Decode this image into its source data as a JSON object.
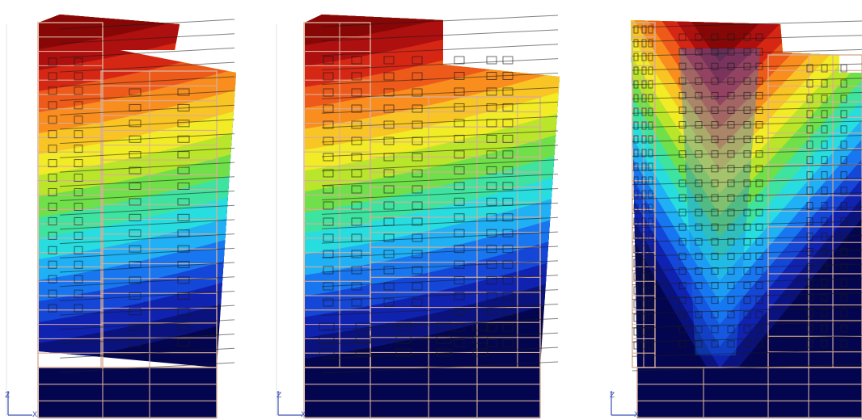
{
  "panels": [
    {
      "id": "left",
      "axis_z": "Z",
      "axis_x": "X"
    },
    {
      "id": "middle",
      "axis_z": "Z",
      "axis_x": "X"
    },
    {
      "id": "right",
      "axis_z": "Z",
      "axis_x": "X"
    }
  ],
  "colors": {
    "contour_bands": [
      "#03064f",
      "#0a127e",
      "#0f22b0",
      "#1446d8",
      "#1877f0",
      "#1fb0f5",
      "#27dde0",
      "#3ee3a0",
      "#6fe04a",
      "#b9e62a",
      "#f1ec25",
      "#f9c524",
      "#f98d1e",
      "#ee5a19",
      "#d62715",
      "#ae0f0f",
      "#870707"
    ],
    "grid_line": "#d9ad95",
    "outline": "#1a1a1a",
    "axis": "#3a4fb0"
  }
}
